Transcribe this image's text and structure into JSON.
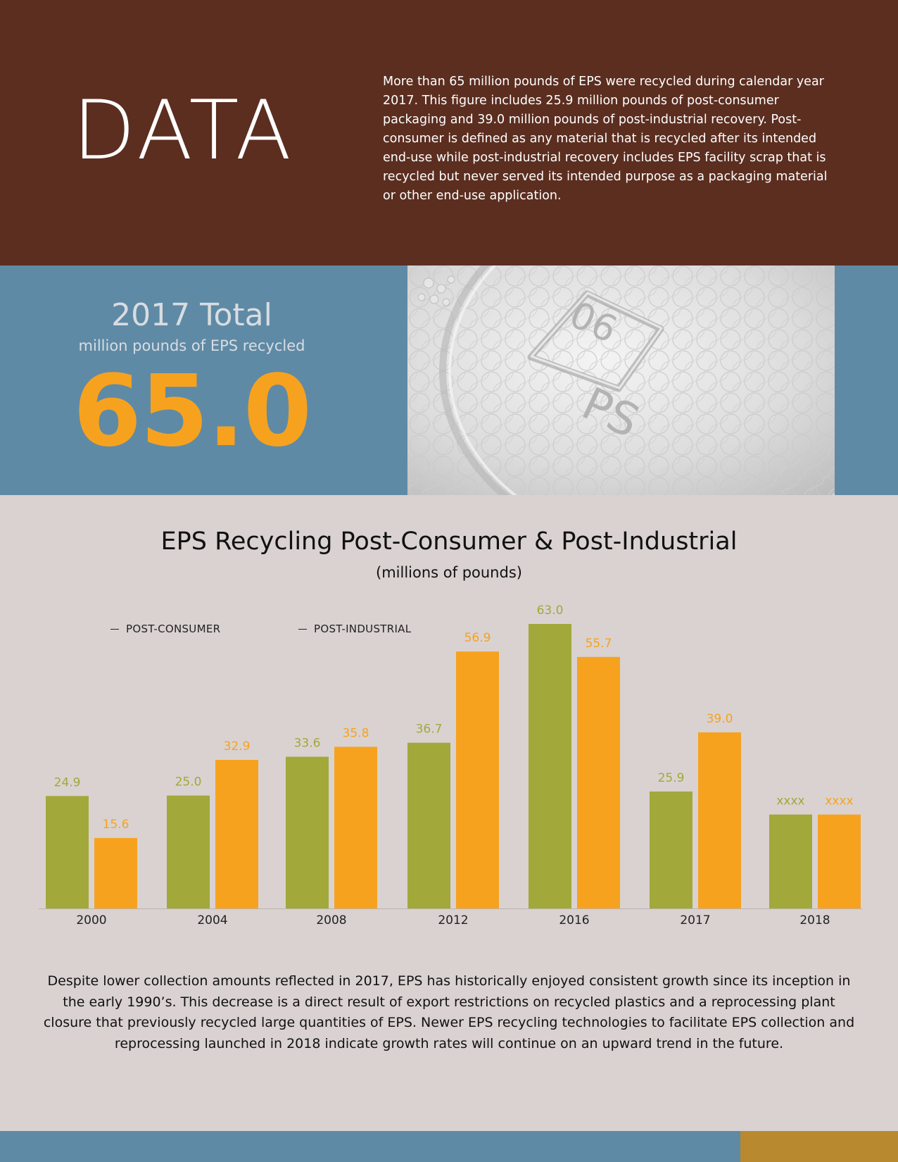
{
  "header": {
    "title": "DATA",
    "intro": "More than 65 million pounds of EPS were recycled during calendar year 2017. This figure includes 25.9 million pounds of post-consumer packaging and 39.0 million pounds of post-industrial recovery. Post-consumer is defined as any material that is recycled after its intended end-use while post-industrial recovery includes EPS facility scrap that is recycled but never served its intended purpose as a packaging material or other end-use application."
  },
  "stat": {
    "title": "2017 Total",
    "subtitle": "million pounds of EPS recycled",
    "value": "65.0"
  },
  "photo": {
    "recycle_code": "06",
    "material": "PS"
  },
  "chart_data": {
    "type": "bar",
    "title": "EPS Recycling Post-Consumer & Post-Industrial",
    "subtitle": "(millions of pounds)",
    "categories": [
      "2000",
      "2004",
      "2008",
      "2012",
      "2016",
      "2017",
      "2018"
    ],
    "series": [
      {
        "name": "POST-CONSUMER",
        "color": "#a2a83a",
        "values": [
          24.9,
          25.0,
          33.6,
          36.7,
          63.0,
          25.9,
          null
        ],
        "labels": [
          "24.9",
          "25.0",
          "33.6",
          "36.7",
          "63.0",
          "25.9",
          "xxxx"
        ]
      },
      {
        "name": "POST-INDUSTRIAL",
        "color": "#f7a21e",
        "values": [
          15.6,
          32.9,
          35.8,
          56.9,
          55.7,
          39.0,
          null
        ],
        "labels": [
          "15.6",
          "32.9",
          "35.8",
          "56.9",
          "55.7",
          "39.0",
          "xxxx"
        ]
      }
    ],
    "placeholder_value": 20.8,
    "ylim": [
      0,
      63.0
    ],
    "legend": "top-left",
    "grid": false
  },
  "footer_text": "Despite lower collection amounts reflected in 2017, EPS has historically enjoyed consistent growth since its inception in the early 1990’s. This decrease is a direct result of export restrictions on recycled plastics and a reprocessing plant closure that previously recycled large quantities of EPS. Newer EPS recycling technologies to facilitate EPS collection and reprocessing launched in 2018 indicate growth rates will continue on an upward trend in the future.",
  "colors": {
    "brown": "#5b2e20",
    "blue": "#5f8aa6",
    "orange": "#f7a21e",
    "olive": "#a2a83a",
    "gold": "#b8892f",
    "background": "#d9d2d1"
  }
}
